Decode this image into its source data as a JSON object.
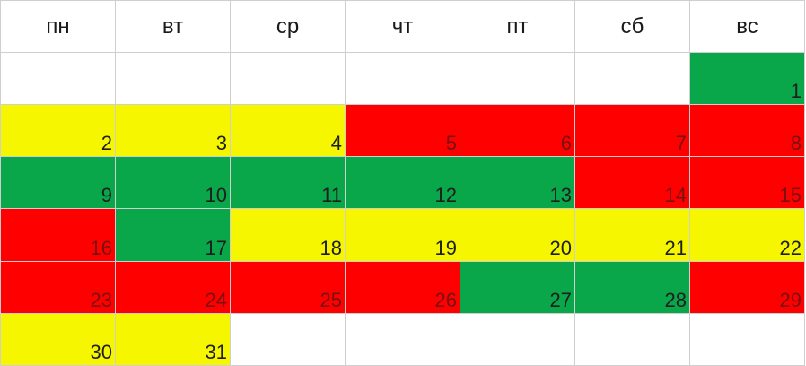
{
  "weekdays": [
    "пн",
    "вт",
    "ср",
    "чт",
    "пт",
    "сб",
    "вс"
  ],
  "colors": {
    "green": "#0aa64a",
    "yellow": "#f6f600",
    "red": "#ff0000",
    "empty": "#ffffff"
  },
  "weeks": [
    [
      {
        "day": "",
        "status": "empty"
      },
      {
        "day": "",
        "status": "empty"
      },
      {
        "day": "",
        "status": "empty"
      },
      {
        "day": "",
        "status": "empty"
      },
      {
        "day": "",
        "status": "empty"
      },
      {
        "day": "",
        "status": "empty"
      },
      {
        "day": "1",
        "status": "green"
      }
    ],
    [
      {
        "day": "2",
        "status": "yellow"
      },
      {
        "day": "3",
        "status": "yellow"
      },
      {
        "day": "4",
        "status": "yellow"
      },
      {
        "day": "5",
        "status": "red"
      },
      {
        "day": "6",
        "status": "red"
      },
      {
        "day": "7",
        "status": "red"
      },
      {
        "day": "8",
        "status": "red"
      }
    ],
    [
      {
        "day": "9",
        "status": "green"
      },
      {
        "day": "10",
        "status": "green"
      },
      {
        "day": "11",
        "status": "green"
      },
      {
        "day": "12",
        "status": "green"
      },
      {
        "day": "13",
        "status": "green"
      },
      {
        "day": "14",
        "status": "red"
      },
      {
        "day": "15",
        "status": "red"
      }
    ],
    [
      {
        "day": "16",
        "status": "red"
      },
      {
        "day": "17",
        "status": "green"
      },
      {
        "day": "18",
        "status": "yellow"
      },
      {
        "day": "19",
        "status": "yellow"
      },
      {
        "day": "20",
        "status": "yellow"
      },
      {
        "day": "21",
        "status": "yellow"
      },
      {
        "day": "22",
        "status": "yellow"
      }
    ],
    [
      {
        "day": "23",
        "status": "red"
      },
      {
        "day": "24",
        "status": "red"
      },
      {
        "day": "25",
        "status": "red"
      },
      {
        "day": "26",
        "status": "red"
      },
      {
        "day": "27",
        "status": "green"
      },
      {
        "day": "28",
        "status": "green"
      },
      {
        "day": "29",
        "status": "red"
      }
    ],
    [
      {
        "day": "30",
        "status": "yellow"
      },
      {
        "day": "31",
        "status": "yellow"
      },
      {
        "day": "",
        "status": "empty"
      },
      {
        "day": "",
        "status": "empty"
      },
      {
        "day": "",
        "status": "empty"
      },
      {
        "day": "",
        "status": "empty"
      },
      {
        "day": "",
        "status": "empty"
      }
    ]
  ]
}
